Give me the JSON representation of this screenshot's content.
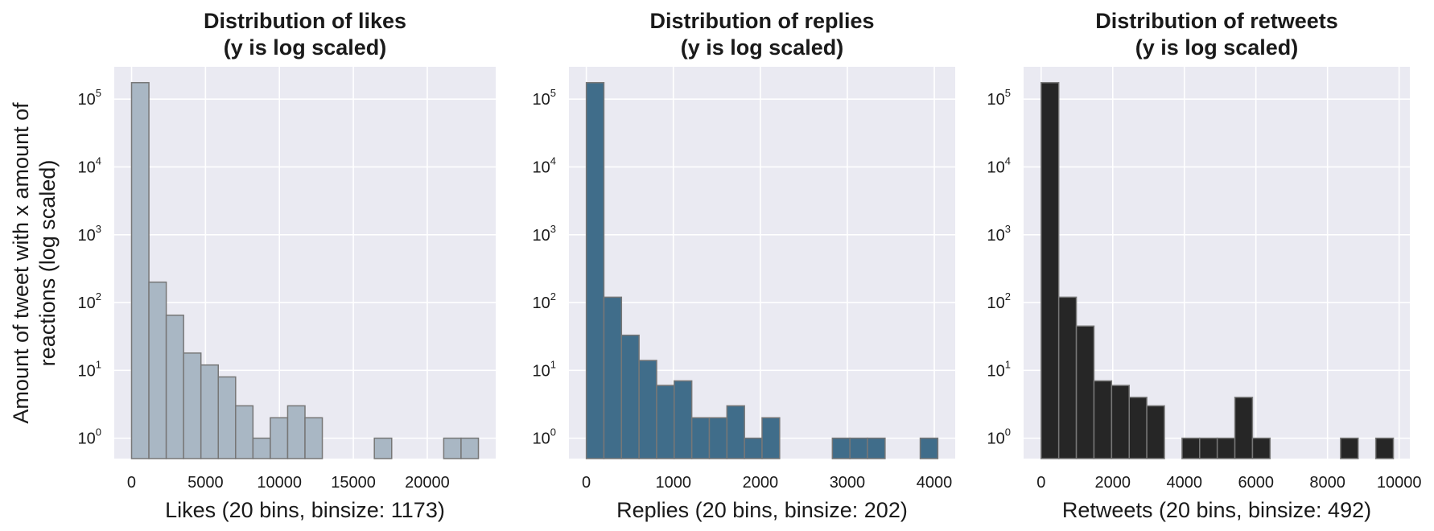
{
  "chart_data": [
    {
      "type": "bar",
      "title_line1": "Distribution of likes",
      "title_line2": "(y is log scaled)",
      "xlabel": "Likes (20 bins, binsize: 1173)",
      "ylabel_line1": "Amount of tweet with x amount of",
      "ylabel_line2": "reactions (log scaled)",
      "yscale": "log",
      "ylim": [
        0.5,
        300000
      ],
      "xlim": [
        -1170,
        24630
      ],
      "xticks": [
        0,
        5000,
        10000,
        15000,
        20000
      ],
      "xtick_labels": [
        "0",
        "5000",
        "10000",
        "15000",
        "20000"
      ],
      "yticks": [
        1,
        10,
        100,
        1000,
        10000,
        100000
      ],
      "ytick_bases": [
        "10",
        "10",
        "10",
        "10",
        "10",
        "10"
      ],
      "ytick_exps": [
        "0",
        "1",
        "2",
        "3",
        "4",
        "5"
      ],
      "bin_start": 0,
      "bin_width": 1173,
      "counts": [
        175000,
        200,
        65,
        18,
        12,
        8,
        3,
        1,
        2,
        3,
        2,
        0,
        0,
        0,
        1,
        0,
        0,
        0,
        1,
        1
      ],
      "fill_color": "#a9b7c4",
      "edge_color": "#777777",
      "grid": true
    },
    {
      "type": "bar",
      "title_line1": "Distribution of replies",
      "title_line2": "(y is log scaled)",
      "xlabel": "Replies (20 bins, binsize: 202)",
      "yscale": "log",
      "ylim": [
        0.5,
        300000
      ],
      "xlim": [
        -200,
        4240
      ],
      "xticks": [
        0,
        1000,
        2000,
        3000,
        4000
      ],
      "xtick_labels": [
        "0",
        "1000",
        "2000",
        "3000",
        "4000"
      ],
      "yticks": [
        1,
        10,
        100,
        1000,
        10000,
        100000
      ],
      "ytick_bases": [
        "10",
        "10",
        "10",
        "10",
        "10",
        "10"
      ],
      "ytick_exps": [
        "0",
        "1",
        "2",
        "3",
        "4",
        "5"
      ],
      "bin_start": 0,
      "bin_width": 202,
      "counts": [
        175000,
        120,
        33,
        14,
        6,
        7,
        2,
        2,
        3,
        1,
        2,
        0,
        0,
        0,
        1,
        1,
        1,
        0,
        0,
        1
      ],
      "fill_color": "#406d8a",
      "edge_color": "#777777",
      "grid": true
    },
    {
      "type": "bar",
      "title_line1": "Distribution of retweets",
      "title_line2": "(y is log scaled)",
      "xlabel": "Retweets (20 bins, binsize: 492)",
      "yscale": "log",
      "ylim": [
        0.5,
        300000
      ],
      "xlim": [
        -490,
        10300
      ],
      "xticks": [
        0,
        2000,
        4000,
        6000,
        8000,
        10000
      ],
      "xtick_labels": [
        "0",
        "2000",
        "4000",
        "6000",
        "8000",
        "10000"
      ],
      "yticks": [
        1,
        10,
        100,
        1000,
        10000,
        100000
      ],
      "ytick_bases": [
        "10",
        "10",
        "10",
        "10",
        "10",
        "10"
      ],
      "ytick_exps": [
        "0",
        "1",
        "2",
        "3",
        "4",
        "5"
      ],
      "bin_start": 0,
      "bin_width": 492,
      "counts": [
        175000,
        120,
        45,
        7,
        6,
        4,
        3,
        0,
        1,
        1,
        1,
        4,
        1,
        0,
        0,
        0,
        0,
        1,
        0,
        1
      ],
      "fill_color": "#262626",
      "edge_color": "#777777",
      "grid": true
    }
  ]
}
